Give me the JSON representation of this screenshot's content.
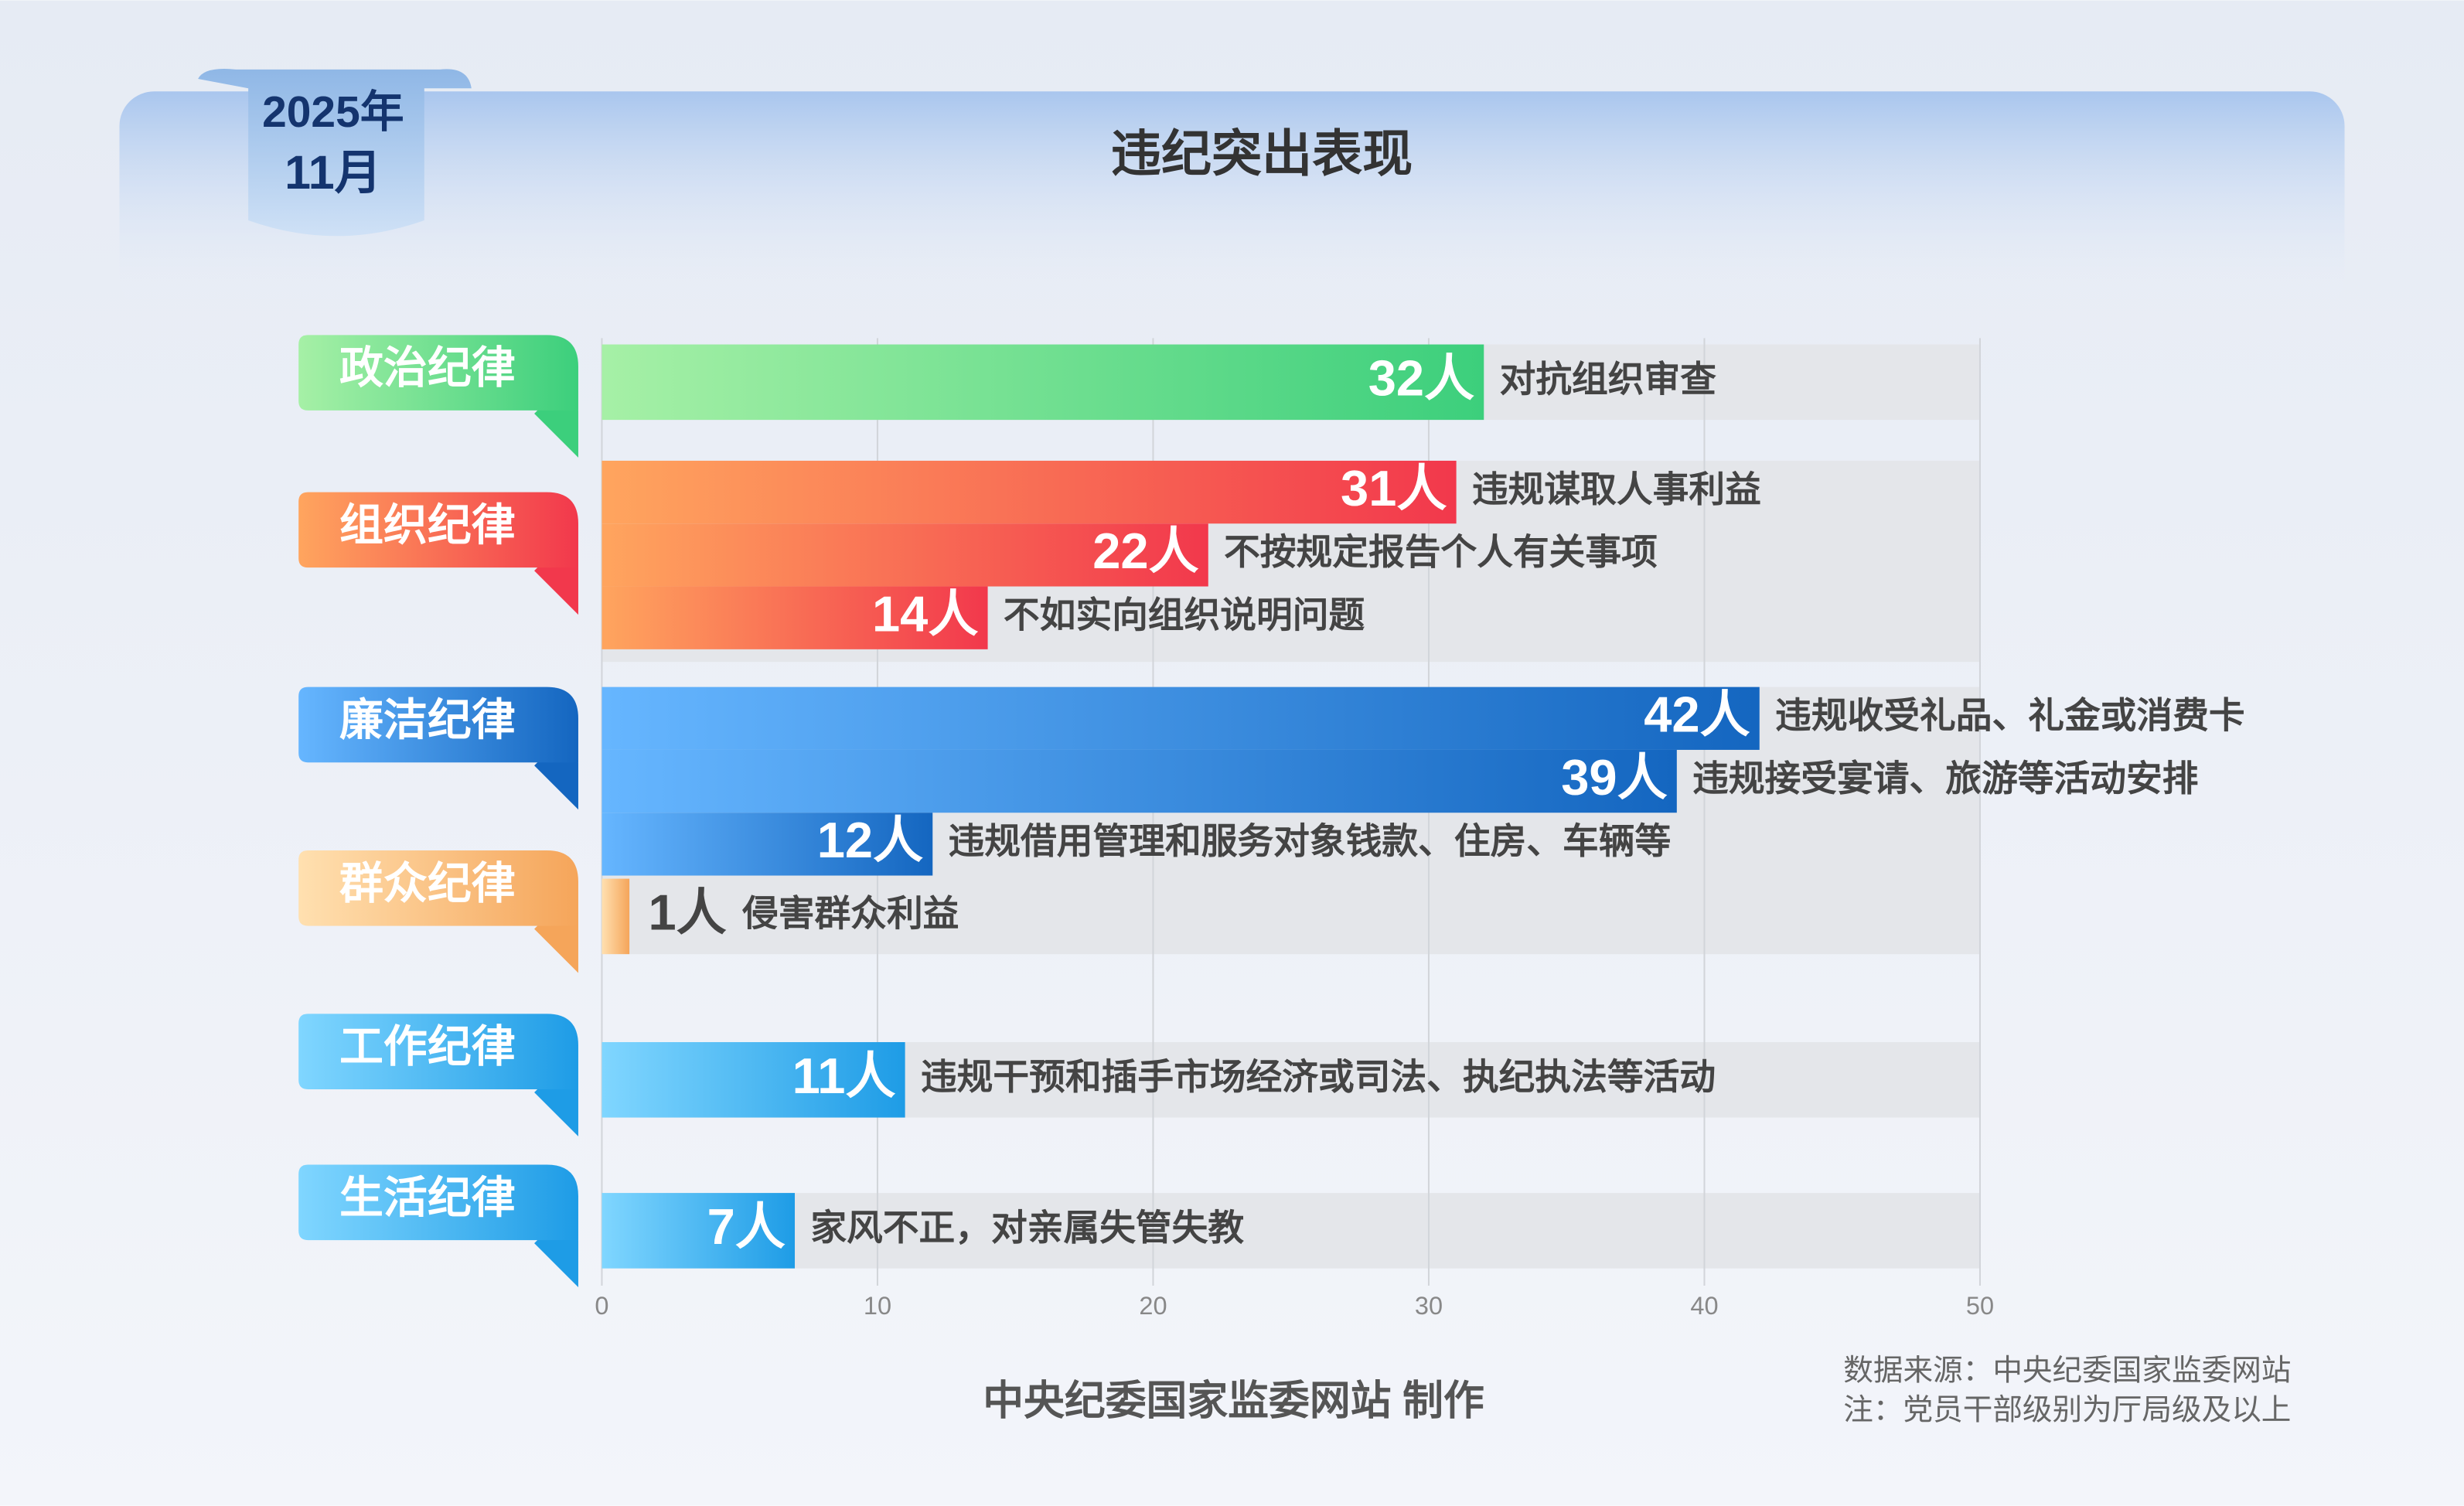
{
  "chart_data": {
    "type": "bar",
    "title": "违纪突出表现",
    "badge": {
      "year": "2025年",
      "month": "11月"
    },
    "xlim": [
      0,
      50
    ],
    "xticks": [
      0,
      10,
      20,
      30,
      40,
      50
    ],
    "grid": true,
    "groups": [
      {
        "name": "政治纪律",
        "colors": [
          "#a6f0a6",
          "#3ccf7c"
        ],
        "items": [
          {
            "value": 32,
            "value_label": "32人",
            "label": "对抗组织审查"
          }
        ]
      },
      {
        "name": "组织纪律",
        "colors": [
          "#ffa55e",
          "#f2384c"
        ],
        "items": [
          {
            "value": 31,
            "value_label": "31人",
            "label": "违规谋取人事利益"
          },
          {
            "value": 22,
            "value_label": "22人",
            "label": "不按规定报告个人有关事项"
          },
          {
            "value": 14,
            "value_label": "14人",
            "label": "不如实向组织说明问题"
          }
        ]
      },
      {
        "name": "廉洁纪律",
        "colors": [
          "#66b6ff",
          "#1466c0"
        ],
        "items": [
          {
            "value": 42,
            "value_label": "42人",
            "label": "违规收受礼品、礼金或消费卡"
          },
          {
            "value": 39,
            "value_label": "39人",
            "label": "违规接受宴请、旅游等活动安排"
          },
          {
            "value": 12,
            "value_label": "12人",
            "label": "违规借用管理和服务对象钱款、住房、车辆等"
          }
        ]
      },
      {
        "name": "群众纪律",
        "colors": [
          "#ffe0b0",
          "#f5a55a"
        ],
        "items": [
          {
            "value": 1,
            "value_label": "1人",
            "label": "侵害群众利益"
          }
        ]
      },
      {
        "name": "工作纪律",
        "colors": [
          "#80d6ff",
          "#1e9ce6"
        ],
        "items": [
          {
            "value": 11,
            "value_label": "11人",
            "label": "违规干预和插手市场经济或司法、执纪执法等活动"
          }
        ]
      },
      {
        "name": "生活纪律",
        "colors": [
          "#80d6ff",
          "#1e9ce6"
        ],
        "items": [
          {
            "value": 7,
            "value_label": "7人",
            "label": "家风不正，对亲属失管失教"
          }
        ]
      }
    ],
    "footer": "中央纪委国家监委网站 制作",
    "source": "数据来源：中央纪委国家监委网站",
    "note": "注：党员干部级别为厅局级及以上"
  }
}
